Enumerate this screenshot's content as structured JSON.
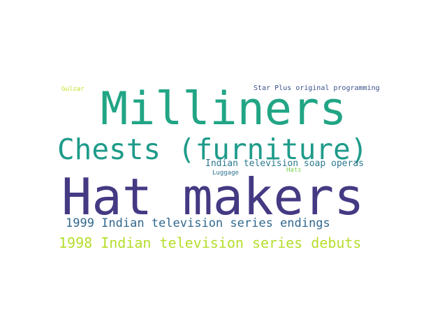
{
  "word_cloud": {
    "words": [
      {
        "id": "milliners",
        "text": "Milliners",
        "color": "#21a585"
      },
      {
        "id": "chests",
        "text": "Chests (furniture)",
        "color": "#1f9b8a"
      },
      {
        "id": "hatmakers",
        "text": "Hat makers",
        "color": "#443a83"
      },
      {
        "id": "1999",
        "text": "1999 Indian television series endings",
        "color": "#31688e"
      },
      {
        "id": "1998",
        "text": "1998 Indian television series debuts",
        "color": "#b5de2b"
      },
      {
        "id": "soap",
        "text": "Indian television soap operas",
        "color": "#2a788e"
      },
      {
        "id": "starplus",
        "text": "Star Plus original programming",
        "color": "#3b528b"
      },
      {
        "id": "gulzar",
        "text": "Gulzar",
        "color": "#c2df23"
      },
      {
        "id": "luggage",
        "text": "Luggage",
        "color": "#2c728e"
      },
      {
        "id": "hats",
        "text": "Hats",
        "color": "#7ad151"
      }
    ]
  }
}
